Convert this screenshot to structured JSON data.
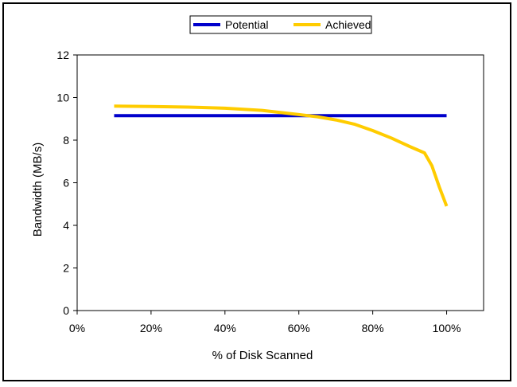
{
  "chart_data": {
    "type": "line",
    "xlabel": "% of Disk Scanned",
    "ylabel": "Bandwidth (MB/s)",
    "xlim": [
      0,
      110
    ],
    "ylim": [
      0,
      12
    ],
    "x_ticks": [
      0,
      20,
      40,
      60,
      80,
      100
    ],
    "x_tick_labels": [
      "0%",
      "20%",
      "40%",
      "60%",
      "80%",
      "100%"
    ],
    "y_ticks": [
      0,
      2,
      4,
      6,
      8,
      10,
      12
    ],
    "y_tick_labels": [
      "0",
      "2",
      "4",
      "6",
      "8",
      "10",
      "12"
    ],
    "grid": false,
    "legend_position": "top",
    "series": [
      {
        "name": "Potential",
        "color": "#0000cc",
        "points": [
          [
            10,
            9.15
          ],
          [
            100,
            9.15
          ]
        ]
      },
      {
        "name": "Achieved",
        "color": "#ffcc00",
        "points": [
          [
            10,
            9.6
          ],
          [
            20,
            9.58
          ],
          [
            30,
            9.55
          ],
          [
            40,
            9.5
          ],
          [
            50,
            9.4
          ],
          [
            60,
            9.2
          ],
          [
            65,
            9.1
          ],
          [
            70,
            8.95
          ],
          [
            75,
            8.75
          ],
          [
            80,
            8.45
          ],
          [
            85,
            8.1
          ],
          [
            90,
            7.7
          ],
          [
            94,
            7.4
          ],
          [
            96,
            6.8
          ],
          [
            98,
            5.8
          ],
          [
            100,
            4.9
          ]
        ]
      }
    ]
  }
}
